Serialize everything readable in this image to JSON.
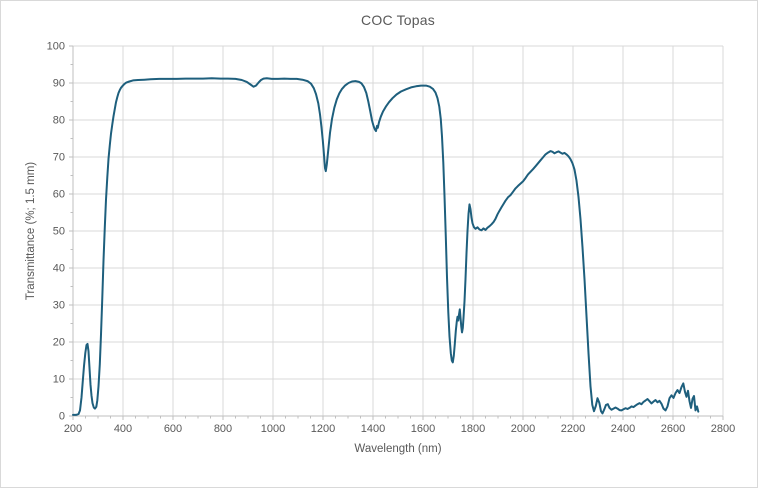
{
  "window": {
    "background": "#FFFFFF",
    "border_color": "#D9D9D9"
  },
  "chart_data": {
    "type": "line",
    "title": "COC Topas",
    "xlabel": "Wavelength (nm)",
    "ylabel": "Transmittance (%; 1.5 mm)",
    "xlim": [
      200,
      2800
    ],
    "ylim": [
      0,
      100
    ],
    "xticks": [
      200,
      400,
      600,
      800,
      1000,
      1200,
      1400,
      1600,
      1800,
      2000,
      2200,
      2400,
      2600,
      2800
    ],
    "yticks": [
      0,
      10,
      20,
      30,
      40,
      50,
      60,
      70,
      80,
      90,
      100
    ],
    "x_minor_step": 50,
    "y_minor_step": 5,
    "grid": true,
    "legend_position": "none",
    "colors": {
      "line": "#1E5F7D",
      "grid": "#D9D9D9",
      "axis": "#BFBFBF",
      "tick": "#BFBFBF",
      "text": "#595959"
    },
    "series": [
      {
        "name": "COC Topas transmittance",
        "points": [
          [
            200,
            0.3
          ],
          [
            212,
            0.3
          ],
          [
            222,
            0.5
          ],
          [
            228,
            1.5
          ],
          [
            234,
            5
          ],
          [
            239,
            9.5
          ],
          [
            244,
            13.5
          ],
          [
            249,
            17
          ],
          [
            254,
            19.2
          ],
          [
            258,
            19.5
          ],
          [
            262,
            17.5
          ],
          [
            266,
            13
          ],
          [
            270,
            8.5
          ],
          [
            274,
            5.5
          ],
          [
            278,
            3.5
          ],
          [
            283,
            2.3
          ],
          [
            288,
            2.0
          ],
          [
            293,
            2.5
          ],
          [
            297,
            4.2
          ],
          [
            302,
            8
          ],
          [
            307,
            14
          ],
          [
            312,
            22
          ],
          [
            317,
            32
          ],
          [
            322,
            42
          ],
          [
            327,
            51
          ],
          [
            332,
            58.5
          ],
          [
            337,
            64.5
          ],
          [
            342,
            69.5
          ],
          [
            347,
            73.2
          ],
          [
            352,
            76.3
          ],
          [
            357,
            78.8
          ],
          [
            362,
            81
          ],
          [
            367,
            83
          ],
          [
            372,
            84.8
          ],
          [
            377,
            86.2
          ],
          [
            382,
            87.3
          ],
          [
            387,
            88.1
          ],
          [
            392,
            88.7
          ],
          [
            398,
            89.2
          ],
          [
            405,
            89.7
          ],
          [
            413,
            90.1
          ],
          [
            425,
            90.4
          ],
          [
            440,
            90.7
          ],
          [
            460,
            90.8
          ],
          [
            485,
            90.9
          ],
          [
            510,
            91.0
          ],
          [
            545,
            91.1
          ],
          [
            580,
            91.1
          ],
          [
            615,
            91.1
          ],
          [
            650,
            91.2
          ],
          [
            685,
            91.2
          ],
          [
            720,
            91.2
          ],
          [
            755,
            91.3
          ],
          [
            790,
            91.2
          ],
          [
            820,
            91.2
          ],
          [
            850,
            91.1
          ],
          [
            875,
            90.8
          ],
          [
            895,
            90.3
          ],
          [
            910,
            89.6
          ],
          [
            922,
            89.0
          ],
          [
            932,
            89.3
          ],
          [
            942,
            90.1
          ],
          [
            952,
            90.8
          ],
          [
            962,
            91.2
          ],
          [
            975,
            91.3
          ],
          [
            995,
            91.1
          ],
          [
            1020,
            91.1
          ],
          [
            1045,
            91.2
          ],
          [
            1070,
            91.1
          ],
          [
            1095,
            91.1
          ],
          [
            1118,
            90.9
          ],
          [
            1138,
            90.5
          ],
          [
            1152,
            89.8
          ],
          [
            1163,
            88.6
          ],
          [
            1172,
            87
          ],
          [
            1181,
            84.5
          ],
          [
            1188,
            81.5
          ],
          [
            1194,
            78
          ],
          [
            1199,
            74.5
          ],
          [
            1204,
            70.5
          ],
          [
            1208,
            67
          ],
          [
            1211,
            66.2
          ],
          [
            1215,
            68
          ],
          [
            1221,
            72
          ],
          [
            1228,
            76.5
          ],
          [
            1236,
            80.3
          ],
          [
            1245,
            83.3
          ],
          [
            1255,
            85.6
          ],
          [
            1265,
            87.2
          ],
          [
            1276,
            88.4
          ],
          [
            1288,
            89.3
          ],
          [
            1302,
            90
          ],
          [
            1316,
            90.4
          ],
          [
            1330,
            90.5
          ],
          [
            1344,
            90.3
          ],
          [
            1354,
            89.9
          ],
          [
            1364,
            88.9
          ],
          [
            1373,
            87.3
          ],
          [
            1381,
            85
          ],
          [
            1389,
            82.3
          ],
          [
            1396,
            79.9
          ],
          [
            1402,
            78.4
          ],
          [
            1407,
            77.5
          ],
          [
            1412,
            77
          ],
          [
            1416,
            78.4
          ],
          [
            1419,
            77.9
          ],
          [
            1424,
            79.4
          ],
          [
            1431,
            80.9
          ],
          [
            1440,
            82.3
          ],
          [
            1451,
            83.6
          ],
          [
            1464,
            84.8
          ],
          [
            1478,
            85.9
          ],
          [
            1494,
            86.9
          ],
          [
            1512,
            87.7
          ],
          [
            1532,
            88.3
          ],
          [
            1552,
            88.8
          ],
          [
            1572,
            89.1
          ],
          [
            1592,
            89.3
          ],
          [
            1612,
            89.3
          ],
          [
            1627,
            89
          ],
          [
            1640,
            88.4
          ],
          [
            1650,
            87.4
          ],
          [
            1658,
            85.9
          ],
          [
            1665,
            83.6
          ],
          [
            1671,
            80.2
          ],
          [
            1676,
            75.5
          ],
          [
            1681,
            68.5
          ],
          [
            1686,
            59.5
          ],
          [
            1691,
            48.5
          ],
          [
            1696,
            37.5
          ],
          [
            1701,
            28
          ],
          [
            1706,
            21.5
          ],
          [
            1711,
            17
          ],
          [
            1715,
            15
          ],
          [
            1719,
            14.5
          ],
          [
            1723,
            16.3
          ],
          [
            1727,
            19.5
          ],
          [
            1731,
            23
          ],
          [
            1735,
            25.6
          ],
          [
            1738,
            26.8
          ],
          [
            1741,
            25.8
          ],
          [
            1744,
            27.4
          ],
          [
            1747,
            28.8
          ],
          [
            1750,
            26.6
          ],
          [
            1753,
            24.1
          ],
          [
            1756,
            22.6
          ],
          [
            1759,
            23.8
          ],
          [
            1762,
            26.5
          ],
          [
            1766,
            31
          ],
          [
            1770,
            37
          ],
          [
            1774,
            44
          ],
          [
            1778,
            50
          ],
          [
            1782,
            54.6
          ],
          [
            1786,
            57.2
          ],
          [
            1790,
            55.9
          ],
          [
            1794,
            53.6
          ],
          [
            1798,
            52.1
          ],
          [
            1803,
            51.1
          ],
          [
            1810,
            50.6
          ],
          [
            1818,
            51
          ],
          [
            1826,
            50.4
          ],
          [
            1834,
            50.2
          ],
          [
            1842,
            50.7
          ],
          [
            1850,
            50.3
          ],
          [
            1858,
            50.9
          ],
          [
            1866,
            51.3
          ],
          [
            1874,
            51.8
          ],
          [
            1882,
            52.4
          ],
          [
            1890,
            53.3
          ],
          [
            1898,
            54.5
          ],
          [
            1906,
            55.5
          ],
          [
            1914,
            56.4
          ],
          [
            1922,
            57.3
          ],
          [
            1930,
            58.2
          ],
          [
            1940,
            59.1
          ],
          [
            1950,
            59.7
          ],
          [
            1960,
            60.6
          ],
          [
            1970,
            61.5
          ],
          [
            1980,
            62.2
          ],
          [
            1990,
            62.8
          ],
          [
            2000,
            63.4
          ],
          [
            2010,
            64.3
          ],
          [
            2020,
            65.3
          ],
          [
            2030,
            66
          ],
          [
            2040,
            66.7
          ],
          [
            2050,
            67.5
          ],
          [
            2060,
            68.3
          ],
          [
            2070,
            69.1
          ],
          [
            2080,
            69.9
          ],
          [
            2090,
            70.7
          ],
          [
            2100,
            71.2
          ],
          [
            2110,
            71.6
          ],
          [
            2118,
            71.4
          ],
          [
            2126,
            71
          ],
          [
            2134,
            71.3
          ],
          [
            2142,
            71.5
          ],
          [
            2150,
            71.2
          ],
          [
            2158,
            70.9
          ],
          [
            2166,
            71.1
          ],
          [
            2174,
            70.7
          ],
          [
            2182,
            70.2
          ],
          [
            2190,
            69.4
          ],
          [
            2198,
            68.3
          ],
          [
            2206,
            66.6
          ],
          [
            2214,
            63.6
          ],
          [
            2222,
            59.2
          ],
          [
            2230,
            53.2
          ],
          [
            2238,
            45.6
          ],
          [
            2246,
            37
          ],
          [
            2254,
            27
          ],
          [
            2262,
            17
          ],
          [
            2270,
            8
          ],
          [
            2277,
            3
          ],
          [
            2284,
            1.3
          ],
          [
            2291,
            2.7
          ],
          [
            2298,
            4.8
          ],
          [
            2305,
            3.6
          ],
          [
            2312,
            1.3
          ],
          [
            2318,
            0.7
          ],
          [
            2325,
            1.8
          ],
          [
            2332,
            3
          ],
          [
            2339,
            3.2
          ],
          [
            2346,
            2.2
          ],
          [
            2354,
            1.7
          ],
          [
            2362,
            2
          ],
          [
            2370,
            2.3
          ],
          [
            2378,
            2
          ],
          [
            2386,
            1.6
          ],
          [
            2394,
            1.5
          ],
          [
            2402,
            1.8
          ],
          [
            2410,
            2.1
          ],
          [
            2418,
            1.9
          ],
          [
            2426,
            2.2
          ],
          [
            2434,
            2.6
          ],
          [
            2442,
            2.4
          ],
          [
            2450,
            2.8
          ],
          [
            2458,
            3.2
          ],
          [
            2466,
            3.5
          ],
          [
            2474,
            3.2
          ],
          [
            2482,
            3.8
          ],
          [
            2490,
            4.2
          ],
          [
            2498,
            4.6
          ],
          [
            2506,
            4
          ],
          [
            2514,
            3.4
          ],
          [
            2522,
            3.9
          ],
          [
            2530,
            4.3
          ],
          [
            2538,
            3.7
          ],
          [
            2546,
            4.1
          ],
          [
            2554,
            3.3
          ],
          [
            2562,
            2
          ],
          [
            2570,
            1.5
          ],
          [
            2578,
            2.6
          ],
          [
            2586,
            4.8
          ],
          [
            2594,
            5.6
          ],
          [
            2602,
            4.9
          ],
          [
            2610,
            6.2
          ],
          [
            2618,
            7
          ],
          [
            2626,
            6.2
          ],
          [
            2634,
            7.8
          ],
          [
            2641,
            8.8
          ],
          [
            2648,
            6.5
          ],
          [
            2654,
            5.2
          ],
          [
            2660,
            6.8
          ],
          [
            2666,
            4
          ],
          [
            2672,
            2.2
          ],
          [
            2678,
            4.6
          ],
          [
            2684,
            5.4
          ],
          [
            2690,
            1.5
          ],
          [
            2696,
            2.6
          ],
          [
            2701,
            1.2
          ]
        ]
      }
    ]
  }
}
